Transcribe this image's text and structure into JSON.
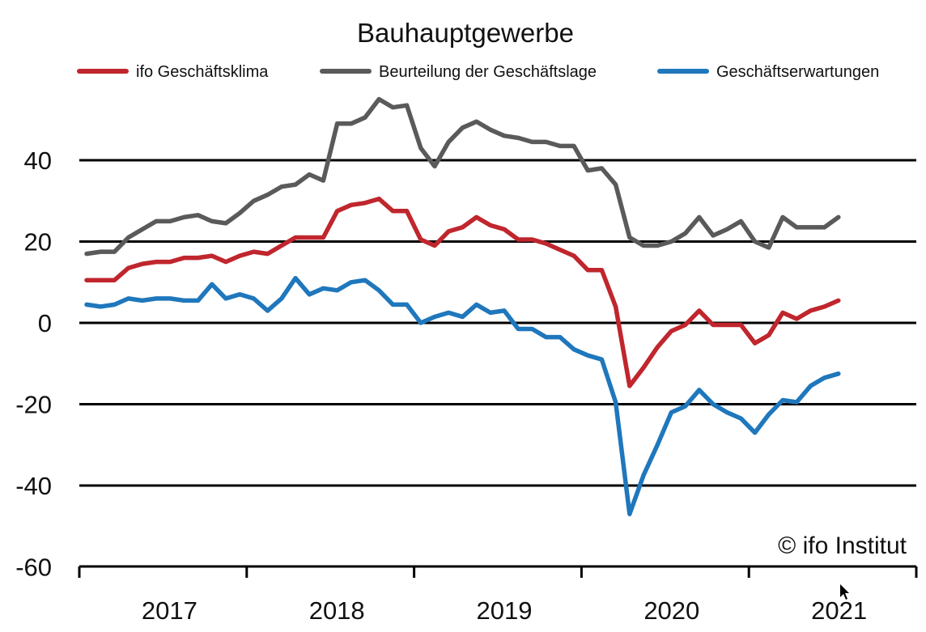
{
  "chart_data": {
    "type": "line",
    "title": "Bauhauptgewerbe",
    "xlabel": "",
    "ylabel": "",
    "ylim": [
      -60,
      55
    ],
    "yticks": [
      40,
      20,
      0,
      -20,
      -40,
      -60
    ],
    "ytick_labels": [
      "40",
      "20",
      "0",
      "-20",
      "-40",
      "-60"
    ],
    "xticks": [
      "2017",
      "2018",
      "2019",
      "2020",
      "2021"
    ],
    "x_start": "2017-01",
    "grid": true,
    "legend_position": "top",
    "copyright": "© ifo Institut",
    "series": [
      {
        "name": "ifo Geschäftsklima",
        "color": "#c0262d",
        "values": [
          10.5,
          10.5,
          10.5,
          13.5,
          14.5,
          15,
          15,
          16,
          16,
          16.5,
          15,
          16.5,
          17.5,
          17,
          19,
          21,
          21,
          21,
          27.5,
          29,
          29.5,
          30.5,
          27.5,
          27.5,
          20.5,
          19,
          22.5,
          23.5,
          26,
          24,
          23,
          20.5,
          20.5,
          19.5,
          18,
          16.5,
          13,
          13,
          4,
          -15.5,
          -11,
          -6,
          -2,
          -0.5,
          3,
          -0.5,
          -0.5,
          -0.5,
          -5,
          -3,
          2.5,
          1,
          3,
          4,
          5.5
        ]
      },
      {
        "name": "Beurteilung der Geschäftslage",
        "color": "#5a5a5a",
        "values": [
          17,
          17.5,
          17.5,
          21,
          23,
          25,
          25,
          26,
          26.5,
          25,
          24.5,
          27,
          30,
          31.5,
          33.5,
          34,
          36.5,
          35,
          49,
          49,
          50.5,
          55,
          53,
          53.5,
          43,
          38.5,
          44.5,
          48,
          49.5,
          47.5,
          46,
          45.5,
          44.5,
          44.5,
          43.5,
          43.5,
          37.5,
          38,
          34,
          21,
          19,
          19,
          20,
          22,
          26,
          21.5,
          23,
          25,
          20,
          18.5,
          26,
          23.5,
          23.5,
          23.5,
          26
        ]
      },
      {
        "name": "Geschäftserwartungen",
        "color": "#1f77bc",
        "values": [
          4.5,
          4,
          4.5,
          6,
          5.5,
          6,
          6,
          5.5,
          5.5,
          9.5,
          6,
          7,
          6,
          3,
          6,
          11,
          7,
          8.5,
          8,
          10,
          10.5,
          8,
          4.5,
          4.5,
          0,
          1.5,
          2.5,
          1.5,
          4.5,
          2.5,
          3,
          -1.5,
          -1.5,
          -3.5,
          -3.5,
          -6.5,
          -8,
          -9,
          -19.5,
          -47,
          -37.5,
          -30,
          -22,
          -20.5,
          -16.5,
          -20,
          -22,
          -23.5,
          -27,
          -22.5,
          -19,
          -19.5,
          -15.5,
          -13.5,
          -12.5
        ]
      }
    ]
  }
}
